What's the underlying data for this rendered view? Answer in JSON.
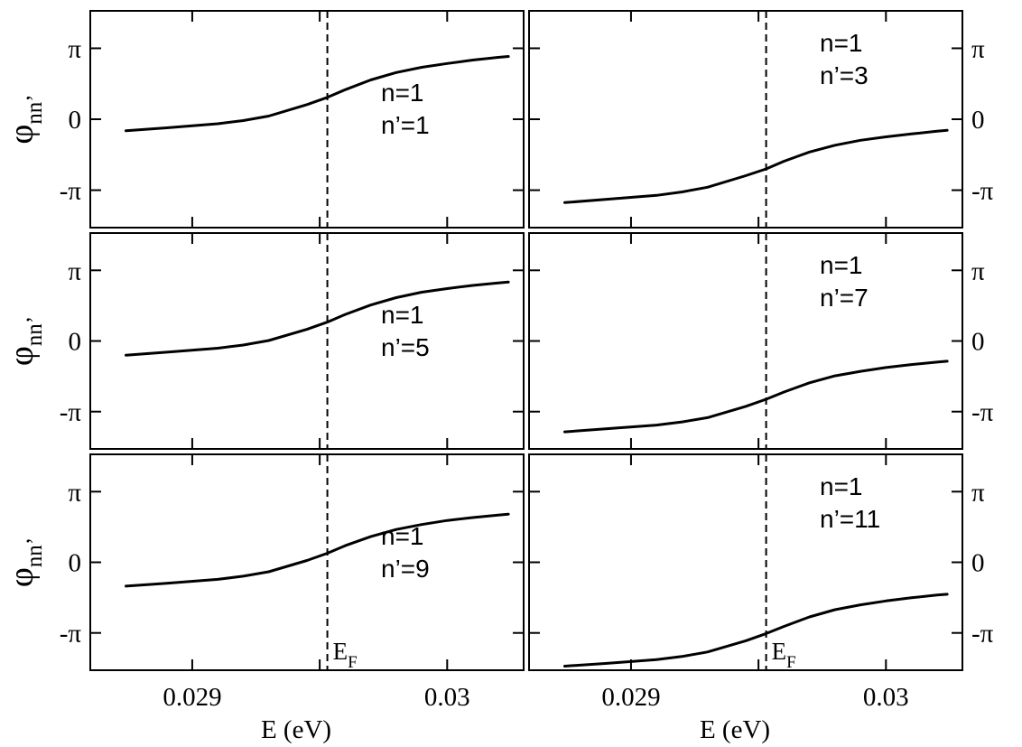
{
  "chart_data": [
    {
      "type": "line",
      "column": 0,
      "row": 0,
      "xlim": [
        0.0286,
        0.0303
      ],
      "ylim": [
        -4.8,
        4.8
      ],
      "ef": 0.02953,
      "annotation": [
        "n=1",
        "n’=1"
      ],
      "x": [
        0.02874,
        0.0289,
        0.0291,
        0.0292,
        0.0293,
        0.02945,
        0.02953,
        0.0296,
        0.0297,
        0.0298,
        0.0299,
        0.03,
        0.0301,
        0.0302,
        0.03024
      ],
      "y": [
        -0.51,
        -0.38,
        -0.2,
        -0.06,
        0.14,
        0.65,
        0.97,
        1.31,
        1.74,
        2.07,
        2.3,
        2.47,
        2.62,
        2.74,
        2.78
      ]
    },
    {
      "type": "line",
      "column": 1,
      "row": 0,
      "xlim": [
        0.0286,
        0.0303
      ],
      "ylim": [
        -4.8,
        4.8
      ],
      "ef": 0.02953,
      "annotation": [
        "n=1",
        "n’=3"
      ],
      "x": [
        0.02874,
        0.0289,
        0.0291,
        0.0292,
        0.0293,
        0.02945,
        0.02953,
        0.0296,
        0.0297,
        0.0298,
        0.0299,
        0.03,
        0.0301,
        0.0302,
        0.03024
      ],
      "y": [
        -3.69,
        -3.55,
        -3.37,
        -3.22,
        -3.01,
        -2.5,
        -2.2,
        -1.86,
        -1.45,
        -1.15,
        -0.93,
        -0.78,
        -0.65,
        -0.53,
        -0.49
      ]
    },
    {
      "type": "line",
      "column": 0,
      "row": 1,
      "xlim": [
        0.0286,
        0.0303
      ],
      "ylim": [
        -4.8,
        4.8
      ],
      "ef": 0.02953,
      "annotation": [
        "n=1",
        "n’=5"
      ],
      "x": [
        0.02874,
        0.0289,
        0.0291,
        0.0292,
        0.0293,
        0.02945,
        0.02953,
        0.0296,
        0.0297,
        0.0298,
        0.0299,
        0.03,
        0.0301,
        0.0302,
        0.03024
      ],
      "y": [
        -0.63,
        -0.5,
        -0.32,
        -0.18,
        0.02,
        0.52,
        0.84,
        1.18,
        1.6,
        1.93,
        2.17,
        2.33,
        2.47,
        2.58,
        2.62
      ]
    },
    {
      "type": "line",
      "column": 1,
      "row": 1,
      "xlim": [
        0.0286,
        0.0303
      ],
      "ylim": [
        -4.8,
        4.8
      ],
      "ef": 0.02953,
      "annotation": [
        "n=1",
        "n’=7"
      ],
      "x": [
        0.02874,
        0.0289,
        0.0291,
        0.0292,
        0.0293,
        0.02945,
        0.02953,
        0.0296,
        0.0297,
        0.0298,
        0.0299,
        0.03,
        0.0301,
        0.0302,
        0.03024
      ],
      "y": [
        -4.04,
        -3.91,
        -3.74,
        -3.6,
        -3.41,
        -2.91,
        -2.59,
        -2.27,
        -1.86,
        -1.55,
        -1.35,
        -1.18,
        -1.05,
        -0.94,
        -0.9
      ]
    },
    {
      "type": "line",
      "column": 0,
      "row": 2,
      "xlim": [
        0.0286,
        0.0303
      ],
      "ylim": [
        -4.8,
        4.8
      ],
      "ef": 0.02953,
      "annotation": [
        "n=1",
        "n’=9"
      ],
      "x": [
        0.02874,
        0.0289,
        0.0291,
        0.0292,
        0.0293,
        0.02945,
        0.02953,
        0.0296,
        0.0297,
        0.0298,
        0.0299,
        0.03,
        0.0301,
        0.0302,
        0.03024
      ],
      "y": [
        -1.06,
        -0.93,
        -0.76,
        -0.62,
        -0.42,
        0.08,
        0.4,
        0.74,
        1.14,
        1.46,
        1.68,
        1.86,
        1.99,
        2.1,
        2.14
      ]
    },
    {
      "type": "line",
      "column": 1,
      "row": 2,
      "xlim": [
        0.0286,
        0.0303
      ],
      "ylim": [
        -4.8,
        4.8
      ],
      "ef": 0.02953,
      "annotation": [
        "n=1",
        "n’=11"
      ],
      "x": [
        0.02874,
        0.0289,
        0.0291,
        0.0292,
        0.0293,
        0.02945,
        0.02953,
        0.0296,
        0.0297,
        0.0298,
        0.0299,
        0.03,
        0.0301,
        0.0302,
        0.03024
      ],
      "y": [
        -4.62,
        -4.5,
        -4.33,
        -4.19,
        -3.99,
        -3.49,
        -3.17,
        -2.85,
        -2.43,
        -2.11,
        -1.89,
        -1.72,
        -1.58,
        -1.46,
        -1.42
      ]
    }
  ],
  "axes": {
    "y_label_main": "φ",
    "y_label_sub": "nn’",
    "y_ticks": [
      {
        "value": 3.14159,
        "label": "π"
      },
      {
        "value": 0,
        "label": "0"
      },
      {
        "value": -3.14159,
        "label": "-π"
      }
    ],
    "x_ticks": [
      {
        "value": 0.029,
        "label": "0.029"
      },
      {
        "value": 0.03,
        "label": "0.03"
      }
    ],
    "x_minor_ticks": [
      0.0285,
      0.0295,
      0.0305
    ],
    "x_label": "E (eV)",
    "ef_label_main": "E",
    "ef_label_sub": "F"
  }
}
